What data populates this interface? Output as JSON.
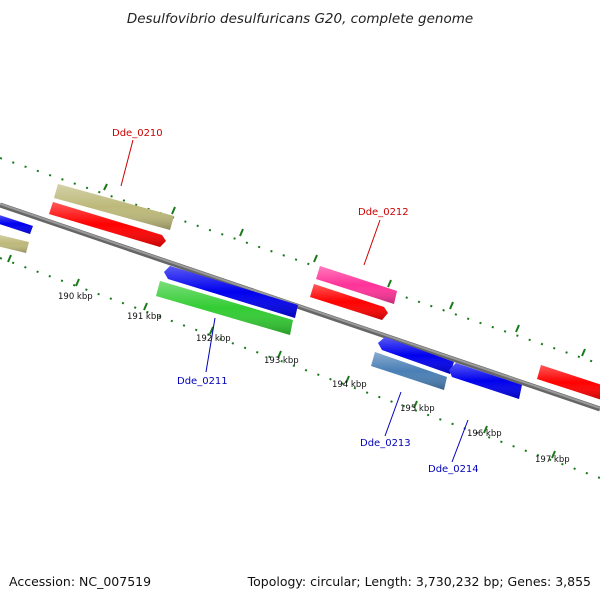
{
  "title": "Desulfovibrio desulfuricans G20, complete genome",
  "footer": {
    "accession": "Accession: NC_007519",
    "summary": "Topology: circular; Length: 3,730,232 bp; Genes: 3,855"
  },
  "ticks": [
    "190 kbp",
    "191 kbp",
    "192 kbp",
    "193 kbp",
    "194 kbp",
    "195 kbp",
    "196 kbp",
    "197 kbp"
  ],
  "gene_labels": [
    {
      "name": "Dde_0210",
      "color": "#cc0000"
    },
    {
      "name": "Dde_0211",
      "color": "#0000bb"
    },
    {
      "name": "Dde_0212",
      "color": "#cc0000"
    },
    {
      "name": "Dde_0213",
      "color": "#0000bb"
    },
    {
      "name": "Dde_0214",
      "color": "#0000bb"
    }
  ],
  "colors": {
    "backbone": "#808080",
    "tick_marks": "#1a7a1a",
    "forward_red": "#ff0000",
    "reverse_blue": "#0000ee",
    "khaki": "#bdb97a",
    "green": "#33cc33",
    "magenta": "#ff3399",
    "steel_blue": "#4a7fb5"
  }
}
